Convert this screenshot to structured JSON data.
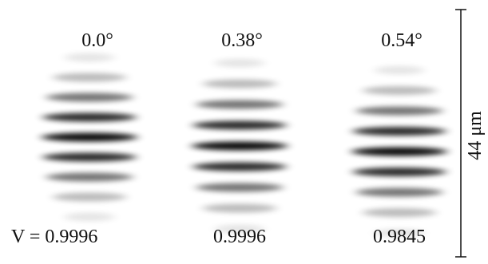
{
  "panels": [
    {
      "angle": "0.0°",
      "visibility": "V = 0.9996"
    },
    {
      "angle": "0.38°",
      "visibility": "0.9996"
    },
    {
      "angle": "0.54°",
      "visibility": "0.9845"
    }
  ],
  "scale_bar": {
    "label": "44 μm"
  }
}
